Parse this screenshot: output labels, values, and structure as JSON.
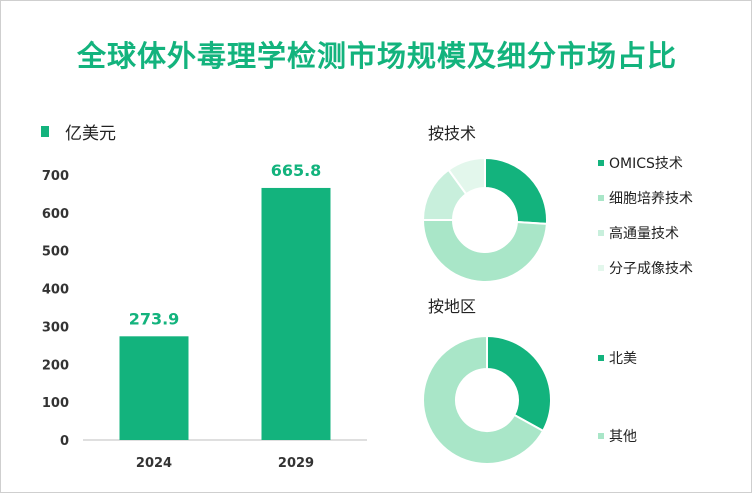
{
  "title": "全球体外毒理学检测市场规模及细分市场占比",
  "colors": {
    "accent": "#13b37d"
  },
  "chart_data": [
    {
      "type": "bar",
      "unit_label": "亿美元",
      "categories": [
        "2024",
        "2029"
      ],
      "values": [
        273.9,
        665.8
      ],
      "value_labels": [
        "273.9",
        "665.8"
      ],
      "yticks": [
        "0",
        "100",
        "200",
        "300",
        "400",
        "500",
        "600",
        "700"
      ],
      "ylim": [
        0,
        700
      ],
      "grid": false
    },
    {
      "type": "pie",
      "title": "按技术",
      "labels": [
        "OMICS技术",
        "细胞培养技术",
        "高通量技术",
        "分子成像技术"
      ],
      "values": [
        0.26,
        0.49,
        0.15,
        0.1
      ],
      "colors": [
        "#13b37d",
        "#a9e6c8",
        "#c8efdc",
        "#e3f7ec"
      ],
      "legend_position": "right"
    },
    {
      "type": "pie",
      "title": "按地区",
      "labels": [
        "北美",
        "其他"
      ],
      "values": [
        0.33,
        0.67
      ],
      "colors": [
        "#13b37d",
        "#a9e6c8"
      ],
      "legend_position": "right"
    }
  ]
}
